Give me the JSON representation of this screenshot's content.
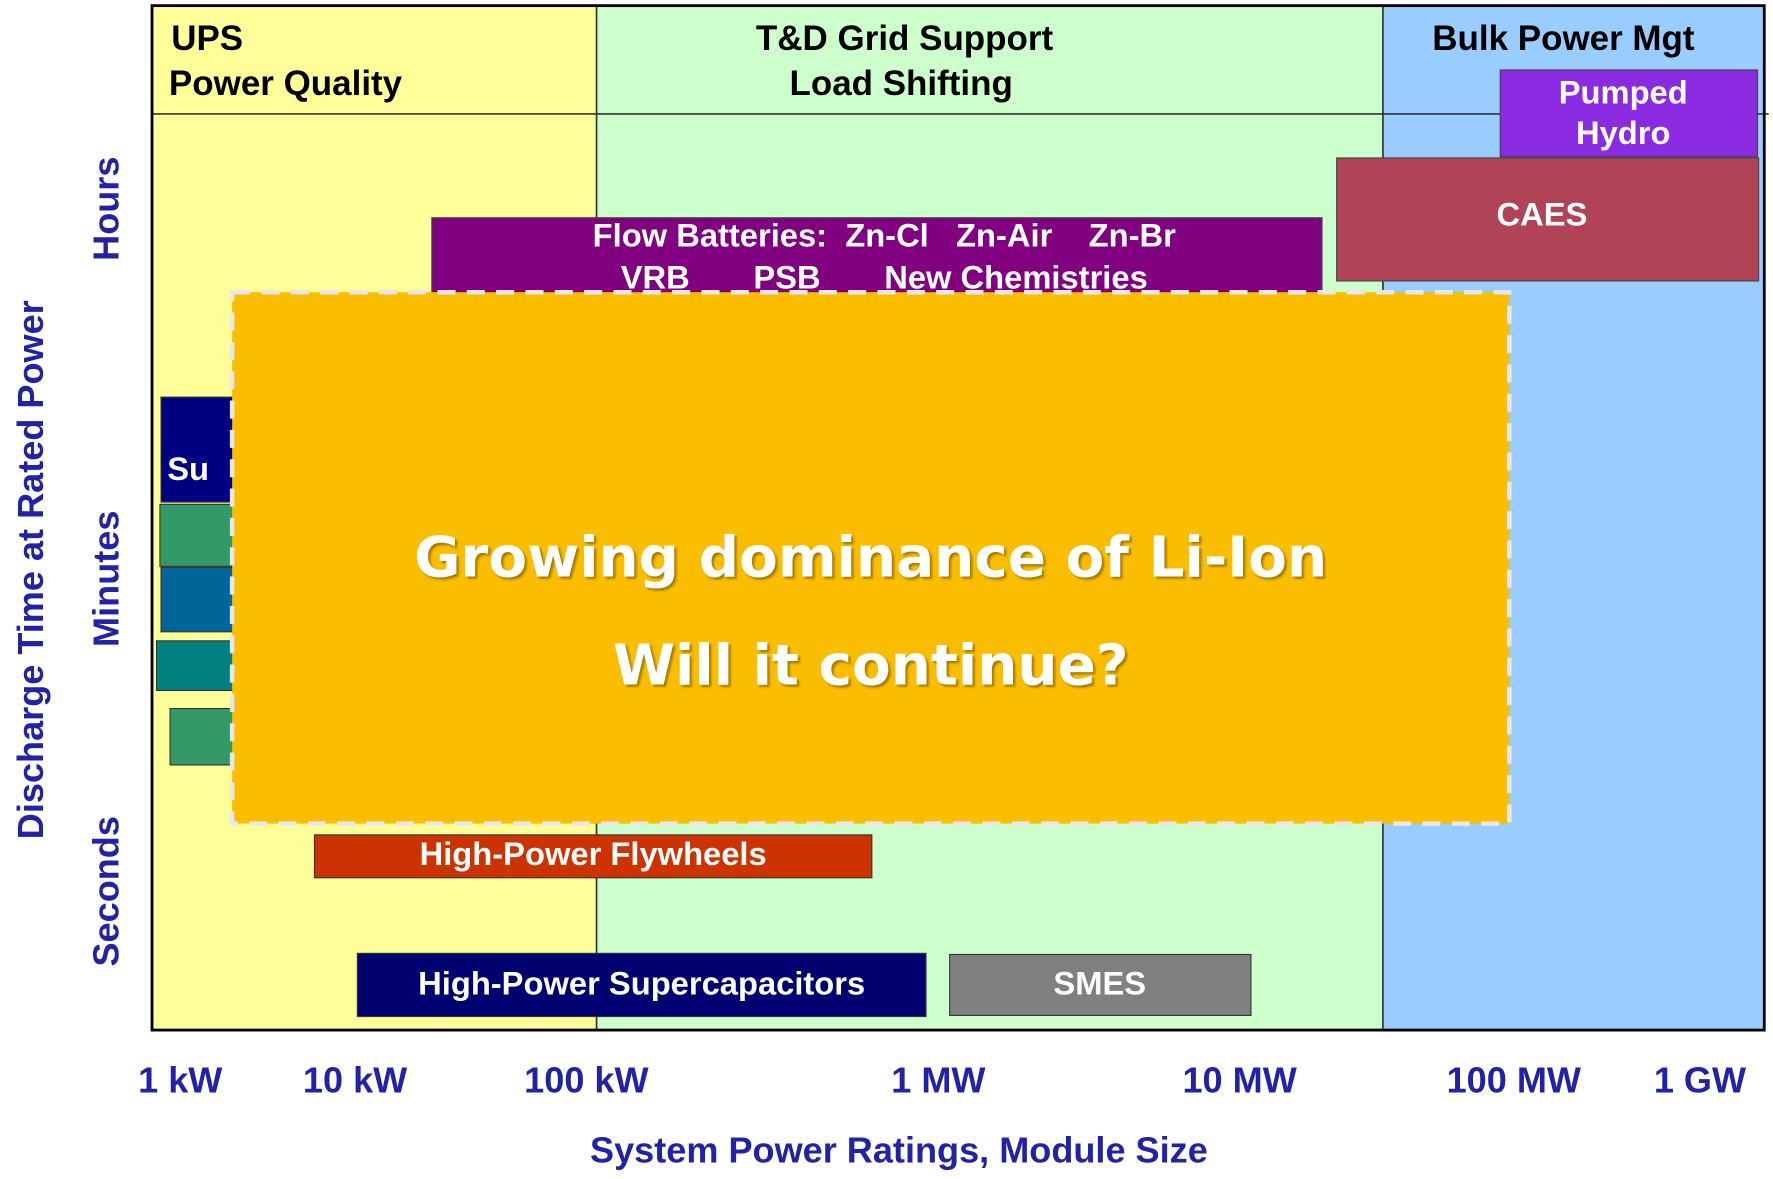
{
  "regions": [
    {
      "title": "UPS",
      "subtitle": "Power Quality"
    },
    {
      "title": "T&D Grid Support",
      "subtitle": "Load Shifting"
    },
    {
      "title": "Bulk Power Mgt"
    }
  ],
  "technologies": {
    "pumped_hydro": [
      "Pumped",
      "Hydro"
    ],
    "caes": "CAES",
    "flow_batteries": [
      "Flow Batteries:  Zn-Cl   Zn-Air    Zn-Br",
      "VRB       PSB       New Chemistries"
    ],
    "partial": "Su",
    "flywheels": "High-Power Flywheels",
    "supercapacitors": "High-Power Supercapacitors",
    "smes": "SMES"
  },
  "y_axis": {
    "title": "Discharge Time at Rated Power",
    "labels": [
      "Hours",
      "Minutes",
      "Seconds"
    ]
  },
  "x_axis": {
    "title": "System Power Ratings, Module Size",
    "labels": [
      "1 kW",
      "10 kW",
      "100 kW",
      "1 MW",
      "10 MW",
      "100 MW",
      "1 GW"
    ]
  },
  "overlay": {
    "line1": "Growing dominance of Li-Ion",
    "line2": "Will it continue?"
  }
}
